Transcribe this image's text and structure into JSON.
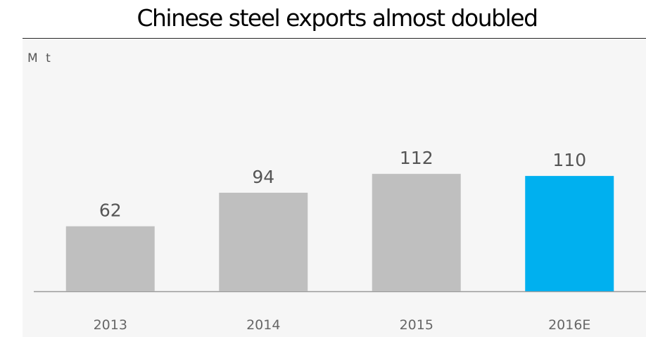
{
  "chart_data": {
    "type": "bar",
    "title": "Chinese steel exports almost doubled",
    "ylabel": "M t",
    "xlabel": "",
    "categories": [
      "2013",
      "2014",
      "2015",
      "2016E"
    ],
    "values": [
      62,
      94,
      112,
      110
    ],
    "value_labels": [
      "62",
      "94",
      "112",
      "110"
    ],
    "ylim": [
      0,
      120
    ],
    "grid": false,
    "legend": "none",
    "colors": {
      "bar": "#bfbfbf",
      "highlight_bar": "#00b0ef",
      "value_label": "#555555",
      "tick_label": "#666666",
      "baseline": "#9a9a9a"
    },
    "highlight_categories": [
      "2016E"
    ]
  }
}
